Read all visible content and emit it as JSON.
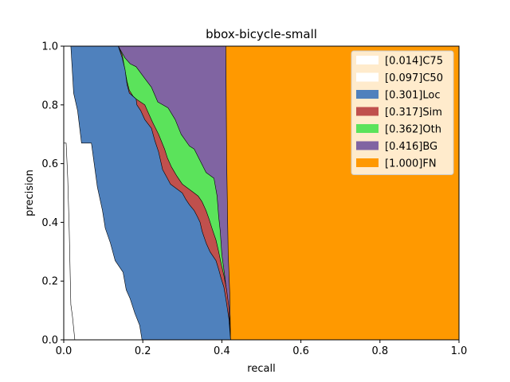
{
  "chart_data": {
    "type": "area",
    "title": "bbox-bicycle-small",
    "xlabel": "recall",
    "ylabel": "precision",
    "xlim": [
      0,
      1
    ],
    "ylim": [
      0,
      1
    ],
    "xticks": [
      "0.0",
      "0.2",
      "0.4",
      "0.6",
      "0.8",
      "1.0"
    ],
    "yticks": [
      "0.0",
      "0.2",
      "0.4",
      "0.6",
      "0.8",
      "1.0"
    ],
    "grid": false,
    "legend_position": "top-right",
    "series": [
      {
        "name": "[1.000]FN",
        "color": "#ff9900",
        "points": [
          [
            0,
            1
          ],
          [
            1,
            1
          ],
          [
            1,
            0
          ],
          [
            0,
            0
          ]
        ]
      },
      {
        "name": "[0.416]BG",
        "color": "#8064a2",
        "points": [
          [
            0,
            1
          ],
          [
            0.41,
            1
          ],
          [
            0.412,
            0.62
          ],
          [
            0.416,
            0.3
          ],
          [
            0.42,
            0.16
          ],
          [
            0.422,
            0.0
          ],
          [
            0,
            0
          ]
        ]
      },
      {
        "name": "[0.362]Oth",
        "color": "#5be35b",
        "points": [
          [
            0,
            1
          ],
          [
            0.138,
            1
          ],
          [
            0.155,
            0.96
          ],
          [
            0.168,
            0.94
          ],
          [
            0.183,
            0.93
          ],
          [
            0.205,
            0.89
          ],
          [
            0.222,
            0.86
          ],
          [
            0.238,
            0.81
          ],
          [
            0.264,
            0.79
          ],
          [
            0.282,
            0.75
          ],
          [
            0.297,
            0.7
          ],
          [
            0.318,
            0.66
          ],
          [
            0.33,
            0.65
          ],
          [
            0.345,
            0.61
          ],
          [
            0.36,
            0.57
          ],
          [
            0.38,
            0.55
          ],
          [
            0.388,
            0.49
          ],
          [
            0.392,
            0.42
          ],
          [
            0.396,
            0.37
          ],
          [
            0.4,
            0.29
          ],
          [
            0.407,
            0.22
          ],
          [
            0.414,
            0.14
          ],
          [
            0.42,
            0.07
          ],
          [
            0.422,
            0.0
          ],
          [
            0,
            0
          ]
        ]
      },
      {
        "name": "[0.317]Sim",
        "color": "#c0504d",
        "points": [
          [
            0,
            1
          ],
          [
            0.138,
            1
          ],
          [
            0.148,
            0.97
          ],
          [
            0.16,
            0.88
          ],
          [
            0.166,
            0.85
          ],
          [
            0.175,
            0.83
          ],
          [
            0.183,
            0.82
          ],
          [
            0.205,
            0.8
          ],
          [
            0.215,
            0.77
          ],
          [
            0.225,
            0.74
          ],
          [
            0.24,
            0.7
          ],
          [
            0.255,
            0.65
          ],
          [
            0.262,
            0.62
          ],
          [
            0.272,
            0.59
          ],
          [
            0.285,
            0.56
          ],
          [
            0.3,
            0.53
          ],
          [
            0.31,
            0.52
          ],
          [
            0.32,
            0.51
          ],
          [
            0.33,
            0.5
          ],
          [
            0.34,
            0.49
          ],
          [
            0.35,
            0.47
          ],
          [
            0.36,
            0.44
          ],
          [
            0.368,
            0.41
          ],
          [
            0.375,
            0.38
          ],
          [
            0.385,
            0.34
          ],
          [
            0.392,
            0.3
          ],
          [
            0.398,
            0.26
          ],
          [
            0.405,
            0.22
          ],
          [
            0.412,
            0.17
          ],
          [
            0.418,
            0.11
          ],
          [
            0.422,
            0.0
          ],
          [
            0,
            0
          ]
        ]
      },
      {
        "name": "[0.301]Loc",
        "color": "#4f81bd",
        "points": [
          [
            0,
            1
          ],
          [
            0.138,
            1
          ],
          [
            0.148,
            0.96
          ],
          [
            0.155,
            0.92
          ],
          [
            0.16,
            0.87
          ],
          [
            0.166,
            0.84
          ],
          [
            0.183,
            0.82
          ],
          [
            0.185,
            0.8
          ],
          [
            0.195,
            0.78
          ],
          [
            0.205,
            0.75
          ],
          [
            0.222,
            0.72
          ],
          [
            0.23,
            0.68
          ],
          [
            0.24,
            0.64
          ],
          [
            0.25,
            0.58
          ],
          [
            0.262,
            0.55
          ],
          [
            0.27,
            0.53
          ],
          [
            0.28,
            0.52
          ],
          [
            0.29,
            0.51
          ],
          [
            0.3,
            0.5
          ],
          [
            0.308,
            0.48
          ],
          [
            0.318,
            0.46
          ],
          [
            0.33,
            0.44
          ],
          [
            0.338,
            0.42
          ],
          [
            0.345,
            0.4
          ],
          [
            0.35,
            0.37
          ],
          [
            0.36,
            0.33
          ],
          [
            0.37,
            0.3
          ],
          [
            0.385,
            0.27
          ],
          [
            0.392,
            0.24
          ],
          [
            0.398,
            0.21
          ],
          [
            0.405,
            0.18
          ],
          [
            0.41,
            0.14
          ],
          [
            0.418,
            0.07
          ],
          [
            0.422,
            0.0
          ],
          [
            0,
            0
          ]
        ]
      },
      {
        "name": "[0.097]C50",
        "color": "#ffffff",
        "points": [
          [
            0,
            1
          ],
          [
            0.018,
            1
          ],
          [
            0.025,
            0.84
          ],
          [
            0.035,
            0.78
          ],
          [
            0.045,
            0.67
          ],
          [
            0.07,
            0.67
          ],
          [
            0.085,
            0.52
          ],
          [
            0.098,
            0.44
          ],
          [
            0.105,
            0.38
          ],
          [
            0.118,
            0.33
          ],
          [
            0.13,
            0.27
          ],
          [
            0.15,
            0.23
          ],
          [
            0.158,
            0.17
          ],
          [
            0.168,
            0.14
          ],
          [
            0.18,
            0.09
          ],
          [
            0.192,
            0.05
          ],
          [
            0.198,
            0.0
          ],
          [
            0,
            0
          ]
        ]
      },
      {
        "name": "[0.014]C75",
        "color": "#ffffff",
        "points": [
          [
            0,
            0.67
          ],
          [
            0.006,
            0.67
          ],
          [
            0.01,
            0.55
          ],
          [
            0.014,
            0.37
          ],
          [
            0.018,
            0.12
          ],
          [
            0.022,
            0.08
          ],
          [
            0.028,
            0.0
          ],
          [
            0,
            0
          ]
        ]
      }
    ],
    "legend": [
      "[0.014]C75",
      "[0.097]C50",
      "[0.301]Loc",
      "[0.317]Sim",
      "[0.362]Oth",
      "[0.416]BG",
      "[1.000]FN"
    ]
  }
}
